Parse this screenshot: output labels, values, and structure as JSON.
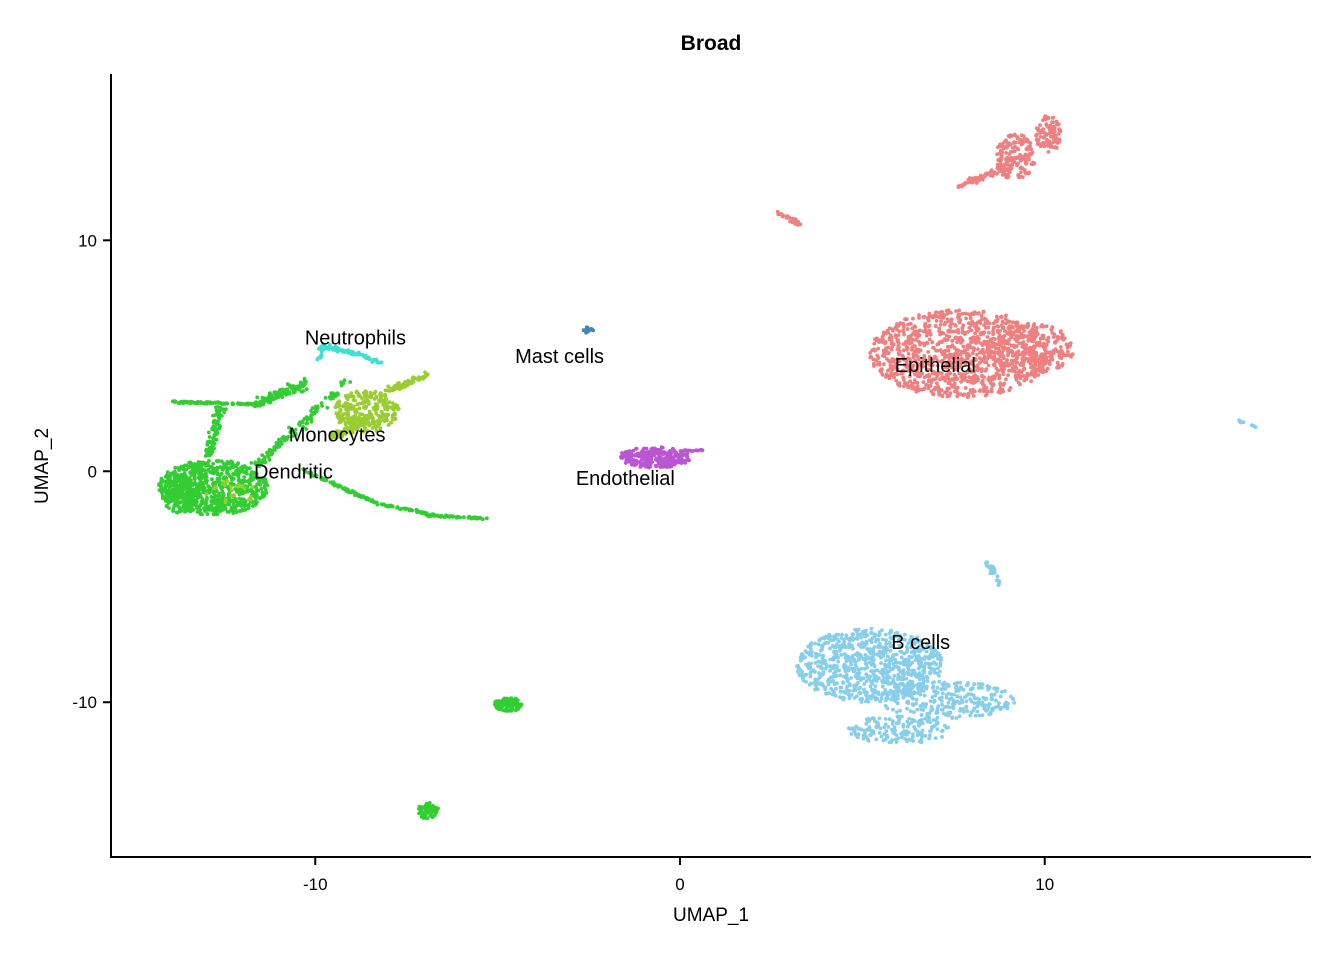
{
  "chart_data": {
    "type": "scatter",
    "title": "Broad",
    "xlabel": "UMAP_1",
    "ylabel": "UMAP_2",
    "xlim": [
      -15.6,
      17.3
    ],
    "ylim": [
      -16.7,
      17.2
    ],
    "xticks": [
      {
        "value": -10,
        "label": "-10"
      },
      {
        "value": 0,
        "label": "0"
      },
      {
        "value": 10,
        "label": "10"
      }
    ],
    "yticks": [
      {
        "value": -10,
        "label": "-10"
      },
      {
        "value": 0,
        "label": "0"
      },
      {
        "value": 10,
        "label": "10"
      }
    ],
    "grid": false,
    "legend": "none",
    "series": [
      {
        "name": "Epithelial",
        "color": "#F08080"
      },
      {
        "name": "B cells",
        "color": "#87CEEB"
      },
      {
        "name": "Dendritic",
        "color": "#32CD32"
      },
      {
        "name": "Monocytes",
        "color": "#9ACD32"
      },
      {
        "name": "Neutrophils",
        "color": "#40E0D0"
      },
      {
        "name": "Mast cells",
        "color": "#4682B4"
      },
      {
        "name": "Endothelial",
        "color": "#BA55D3"
      }
    ],
    "clusters": [
      {
        "series": "Epithelial",
        "shape": "ellipse",
        "cx": 7.7,
        "cy": 5.1,
        "rx": 2.5,
        "ry": 1.9,
        "n": 1100
      },
      {
        "series": "Epithelial",
        "shape": "ellipse",
        "cx": 9.6,
        "cy": 5.3,
        "rx": 1.2,
        "ry": 1.1,
        "n": 220
      },
      {
        "series": "Epithelial",
        "shape": "ellipse",
        "cx": 9.2,
        "cy": 13.6,
        "rx": 0.55,
        "ry": 1.0,
        "n": 160
      },
      {
        "series": "Epithelial",
        "shape": "ellipse",
        "cx": 10.1,
        "cy": 14.6,
        "rx": 0.35,
        "ry": 0.8,
        "n": 90
      },
      {
        "series": "Epithelial",
        "shape": "line",
        "x1": 7.6,
        "y1": 12.3,
        "x2": 9.0,
        "y2": 13.2,
        "width": 0.25,
        "n": 70
      },
      {
        "series": "Epithelial",
        "shape": "line",
        "x1": 2.7,
        "y1": 11.2,
        "x2": 3.3,
        "y2": 10.7,
        "width": 0.15,
        "n": 30
      },
      {
        "series": "Epithelial",
        "shape": "ellipse",
        "cx": 8.5,
        "cy": -4.2,
        "rx": 0.1,
        "ry": 0.1,
        "n": 3
      },
      {
        "series": "B cells",
        "shape": "ellipse",
        "cx": 5.2,
        "cy": -8.4,
        "rx": 2.0,
        "ry": 1.6,
        "n": 800
      },
      {
        "series": "B cells",
        "shape": "ellipse",
        "cx": 7.3,
        "cy": -9.9,
        "rx": 1.9,
        "ry": 0.8,
        "n": 260
      },
      {
        "series": "B cells",
        "shape": "ellipse",
        "cx": 6.0,
        "cy": -11.2,
        "rx": 1.4,
        "ry": 0.6,
        "n": 160
      },
      {
        "series": "B cells",
        "shape": "line",
        "x1": 8.4,
        "y1": -3.9,
        "x2": 8.8,
        "y2": -4.9,
        "width": 0.15,
        "n": 25
      },
      {
        "series": "B cells",
        "shape": "line",
        "x1": 15.3,
        "y1": 2.2,
        "x2": 15.8,
        "y2": 1.9,
        "width": 0.08,
        "n": 12
      },
      {
        "series": "Dendritic",
        "shape": "ellipse",
        "cx": -12.8,
        "cy": -0.7,
        "rx": 1.5,
        "ry": 1.2,
        "n": 700
      },
      {
        "series": "Dendritic",
        "shape": "ellipse",
        "cx": -13.7,
        "cy": -1.0,
        "rx": 0.5,
        "ry": 0.8,
        "n": 150
      },
      {
        "series": "Dendritic",
        "shape": "line",
        "x1": -12.6,
        "y1": 2.9,
        "x2": -12.9,
        "y2": 0.7,
        "width": 0.3,
        "n": 90
      },
      {
        "series": "Dendritic",
        "shape": "line",
        "x1": -14.0,
        "y1": 3.0,
        "x2": -11.4,
        "y2": 2.9,
        "width": 0.1,
        "n": 100
      },
      {
        "series": "Dendritic",
        "shape": "line",
        "x1": -11.7,
        "y1": 2.9,
        "x2": -10.2,
        "y2": 3.8,
        "width": 0.4,
        "n": 110
      },
      {
        "series": "Dendritic",
        "shape": "line",
        "x1": -11.6,
        "y1": 0.3,
        "x2": -9.1,
        "y2": 3.9,
        "width": 0.3,
        "n": 120
      },
      {
        "series": "Dendritic",
        "shape": "line",
        "x1": -10.4,
        "y1": 0.1,
        "x2": -8.3,
        "y2": -1.4,
        "width": 0.1,
        "n": 80
      },
      {
        "series": "Dendritic",
        "shape": "line",
        "x1": -8.3,
        "y1": -1.4,
        "x2": -6.7,
        "y2": -1.9,
        "width": 0.08,
        "n": 50
      },
      {
        "series": "Dendritic",
        "shape": "line",
        "x1": -7.0,
        "y1": -1.9,
        "x2": -5.3,
        "y2": -2.05,
        "width": 0.08,
        "n": 60
      },
      {
        "series": "Dendritic",
        "shape": "ellipse",
        "cx": -4.7,
        "cy": -10.1,
        "rx": 0.4,
        "ry": 0.3,
        "n": 90
      },
      {
        "series": "Dendritic",
        "shape": "ellipse",
        "cx": -6.9,
        "cy": -14.7,
        "rx": 0.3,
        "ry": 0.35,
        "n": 70
      },
      {
        "series": "Monocytes",
        "shape": "ellipse",
        "cx": -8.6,
        "cy": 2.6,
        "rx": 0.9,
        "ry": 0.9,
        "n": 260
      },
      {
        "series": "Monocytes",
        "shape": "line",
        "x1": -8.0,
        "y1": 3.5,
        "x2": -6.9,
        "y2": 4.2,
        "width": 0.25,
        "n": 80
      },
      {
        "series": "Monocytes",
        "shape": "line",
        "x1": -9.5,
        "y1": 1.5,
        "x2": -8.6,
        "y2": 2.2,
        "width": 0.35,
        "n": 60
      },
      {
        "series": "Monocytes",
        "shape": "ellipse",
        "cx": -12.4,
        "cy": -1.0,
        "rx": 0.8,
        "ry": 0.6,
        "n": 20
      },
      {
        "series": "Neutrophils",
        "shape": "line",
        "x1": -9.8,
        "y1": 5.4,
        "x2": -8.9,
        "y2": 5.1,
        "width": 0.2,
        "n": 50
      },
      {
        "series": "Neutrophils",
        "shape": "line",
        "x1": -8.9,
        "y1": 5.1,
        "x2": -8.2,
        "y2": 4.7,
        "width": 0.15,
        "n": 30
      },
      {
        "series": "Neutrophils",
        "shape": "line",
        "x1": -9.9,
        "y1": 4.8,
        "x2": -9.8,
        "y2": 5.6,
        "width": 0.12,
        "n": 15
      },
      {
        "series": "Mast cells",
        "shape": "ellipse",
        "cx": -2.5,
        "cy": 6.1,
        "rx": 0.15,
        "ry": 0.15,
        "n": 20
      },
      {
        "series": "Endothelial",
        "shape": "ellipse",
        "cx": -0.7,
        "cy": 0.6,
        "rx": 1.0,
        "ry": 0.45,
        "n": 260
      },
      {
        "series": "Endothelial",
        "shape": "line",
        "x1": 0.0,
        "y1": 0.9,
        "x2": 0.7,
        "y2": 0.9,
        "width": 0.06,
        "n": 15
      }
    ],
    "annotations": [
      {
        "text": "Neutrophils",
        "x": -8.9,
        "y": 5.8
      },
      {
        "text": "Mast cells",
        "x": -3.3,
        "y": 5.0
      },
      {
        "text": "Epithelial",
        "x": 7.0,
        "y": 4.6
      },
      {
        "text": "Monocytes",
        "x": -9.4,
        "y": 1.6
      },
      {
        "text": "Dendritic",
        "x": -10.6,
        "y": 0.0
      },
      {
        "text": "Endothelial",
        "x": -1.5,
        "y": -0.3
      },
      {
        "text": "B cells",
        "x": 6.6,
        "y": -7.4
      }
    ]
  }
}
